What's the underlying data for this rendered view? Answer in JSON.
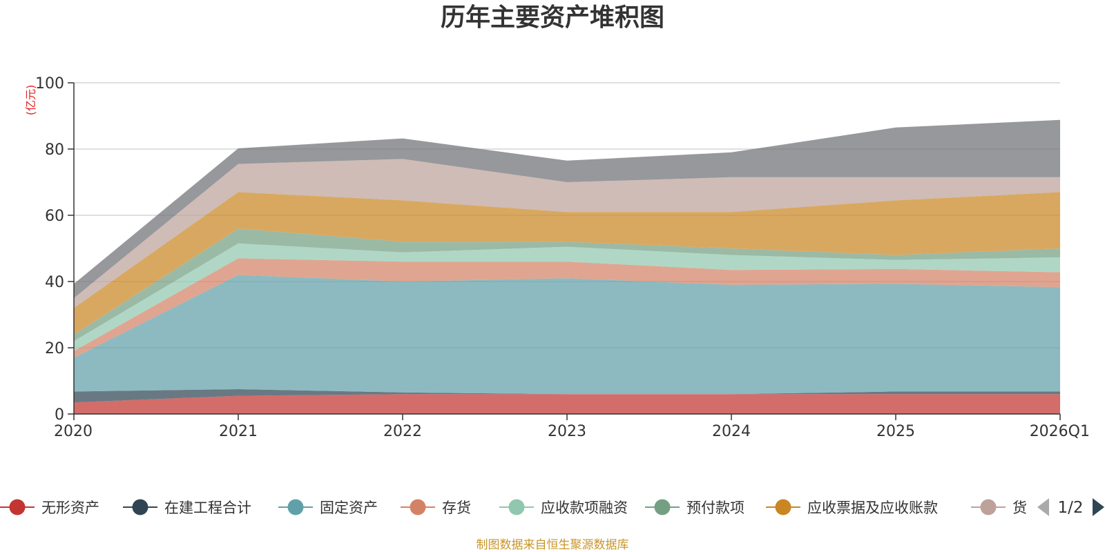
{
  "chart_data": {
    "type": "area",
    "stacked": true,
    "title": "历年主要资产堆积图",
    "unit_label": "(亿元)",
    "categories": [
      "2020",
      "2021",
      "2022",
      "2023",
      "2024",
      "2025",
      "2026Q1"
    ],
    "ylim": [
      0,
      100
    ],
    "yticks": [
      0,
      20,
      40,
      60,
      80,
      100
    ],
    "grid": true,
    "series": [
      {
        "name": "无形资产",
        "color": "#c23531",
        "values": [
          3.5,
          5.5,
          6,
          6,
          6,
          6,
          6
        ]
      },
      {
        "name": "在建工程合计",
        "color": "#2f4554",
        "values": [
          3.3,
          2,
          0.5,
          0,
          0,
          0.8,
          0.8
        ]
      },
      {
        "name": "固定资产",
        "color": "#61a0a8",
        "values": [
          10.2,
          34.5,
          33.5,
          35,
          33,
          32.5,
          31.5
        ]
      },
      {
        "name": "存货",
        "color": "#d48265",
        "values": [
          2,
          5,
          6,
          5,
          4.5,
          4.5,
          4.5
        ]
      },
      {
        "name": "应收款项融资",
        "color": "#91c7ae",
        "values": [
          3,
          4.5,
          2.8,
          4.5,
          4.5,
          2.7,
          4.5
        ]
      },
      {
        "name": "预付款项",
        "color": "#749f83",
        "values": [
          2,
          4.5,
          3.2,
          1.5,
          2,
          1.5,
          2.7
        ]
      },
      {
        "name": "应收票据及应收账款",
        "color": "#ca8622",
        "values": [
          8,
          11,
          12.5,
          9,
          11,
          16.5,
          17
        ]
      },
      {
        "name": "货币资金",
        "color": "#bda29a",
        "values": [
          3,
          8.5,
          12.5,
          9,
          10.5,
          7,
          4.5
        ]
      },
      {
        "name": "",
        "color": "#6e7074",
        "values": [
          4.3,
          4.7,
          6.2,
          6.5,
          7.5,
          15,
          17.3
        ]
      }
    ]
  },
  "legend": {
    "items": [
      {
        "label": "无形资产",
        "color": "#c23531"
      },
      {
        "label": "在建工程合计",
        "color": "#2f4554"
      },
      {
        "label": "固定资产",
        "color": "#61a0a8"
      },
      {
        "label": "存货",
        "color": "#d48265"
      },
      {
        "label": "应收款项融资",
        "color": "#91c7ae"
      },
      {
        "label": "预付款项",
        "color": "#749f83"
      },
      {
        "label": "应收票据及应收账款",
        "color": "#ca8622"
      },
      {
        "label": "货",
        "color": "#bda29a"
      }
    ],
    "page_indicator": "1/2"
  },
  "footer": "制图数据来自恒生聚源数据库"
}
